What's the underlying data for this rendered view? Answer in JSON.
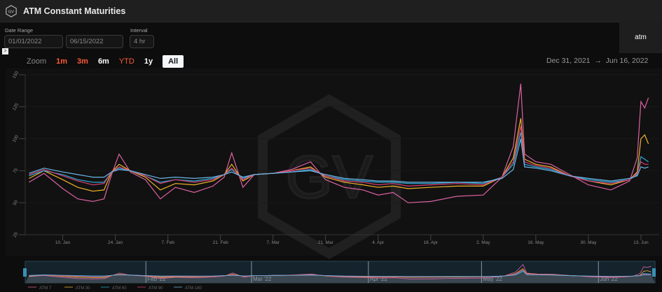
{
  "header": {
    "title": "ATM Constant Maturities",
    "logo_text": "GV"
  },
  "controls": {
    "date_range_label": "Date Range",
    "start_date": "01/01/2022",
    "end_date": "06/15/2022",
    "interval_label": "Interval",
    "interval": "4 hr",
    "atm_button": "atm",
    "toggle_icon": ">"
  },
  "zoom": {
    "label": "Zoom",
    "buttons": [
      "1m",
      "3m",
      "6m",
      "YTD",
      "1y",
      "All"
    ],
    "active": "All",
    "button_colors": [
      "#ff5a36",
      "#ff5a36",
      "#ffffff",
      "#ff5a36",
      "#ffffff",
      "#111111"
    ]
  },
  "range_display": {
    "from": "Dec 31, 2021",
    "arrow": "→",
    "to": "Jun 16, 2022"
  },
  "chart_data": {
    "type": "line",
    "title": "",
    "xlabel": "",
    "ylabel": "",
    "ylim": [
      25,
      150
    ],
    "yticks": [
      25,
      50,
      75,
      100,
      125,
      150
    ],
    "xlim": [
      "2021-12-31",
      "2022-06-16"
    ],
    "xticks": [
      [
        "2022-01-10",
        "10. Jan"
      ],
      [
        "2022-01-24",
        "24. Jan"
      ],
      [
        "2022-02-07",
        "7. Feb"
      ],
      [
        "2022-02-21",
        "21. Feb"
      ],
      [
        "2022-03-07",
        "7. Mar"
      ],
      [
        "2022-03-21",
        "21. Mar"
      ],
      [
        "2022-04-04",
        "4. Apr"
      ],
      [
        "2022-04-18",
        "18. Apr"
      ],
      [
        "2022-05-02",
        "2. May"
      ],
      [
        "2022-05-16",
        "16. May"
      ],
      [
        "2022-05-30",
        "30. May"
      ],
      [
        "2022-06-13",
        "13. Jun"
      ]
    ],
    "navigator_labels": [
      [
        "2022-02-01",
        "Feb '22"
      ],
      [
        "2022-03-01",
        "Mar '22"
      ],
      [
        "2022-04-01",
        "Apr '22"
      ],
      [
        "2022-05-01",
        "May '22"
      ],
      [
        "2022-06-01",
        "Jun '22"
      ]
    ],
    "watermark": "GV",
    "grid": true,
    "legend_position": "bottom-left",
    "x": [
      "2022-01-01",
      "2022-01-05",
      "2022-01-10",
      "2022-01-14",
      "2022-01-18",
      "2022-01-21",
      "2022-01-23",
      "2022-01-25",
      "2022-01-28",
      "2022-02-01",
      "2022-02-05",
      "2022-02-09",
      "2022-02-14",
      "2022-02-19",
      "2022-02-22",
      "2022-02-24",
      "2022-02-27",
      "2022-03-02",
      "2022-03-07",
      "2022-03-12",
      "2022-03-17",
      "2022-03-21",
      "2022-03-26",
      "2022-03-31",
      "2022-04-04",
      "2022-04-08",
      "2022-04-12",
      "2022-04-18",
      "2022-04-25",
      "2022-05-02",
      "2022-05-07",
      "2022-05-10",
      "2022-05-12",
      "2022-05-13",
      "2022-05-16",
      "2022-05-20",
      "2022-05-25",
      "2022-05-30",
      "2022-06-05",
      "2022-06-10",
      "2022-06-12",
      "2022-06-13",
      "2022-06-14",
      "2022-06-15"
    ],
    "series": [
      {
        "name": "ATM 7",
        "color": "#dc62a2",
        "values": [
          66,
          73,
          61,
          53,
          51,
          53,
          72,
          88,
          74,
          68,
          53,
          62,
          58,
          63,
          70,
          89,
          62,
          72,
          73,
          76,
          82,
          68,
          62,
          60,
          56,
          58,
          50,
          51,
          55,
          56,
          70,
          94,
          143,
          88,
          82,
          80,
          72,
          64,
          60,
          67,
          85,
          129,
          124,
          132
        ]
      },
      {
        "name": "ATM 30",
        "color": "#f0b429",
        "values": [
          69,
          75,
          68,
          62,
          59,
          60,
          74,
          80,
          75,
          70,
          60,
          65,
          64,
          67,
          72,
          80,
          67,
          72,
          73,
          75,
          78,
          70,
          66,
          64,
          62,
          63,
          61,
          62,
          63,
          63,
          70,
          85,
          116,
          84,
          80,
          78,
          71,
          67,
          64,
          68,
          74,
          100,
          103,
          96
        ]
      },
      {
        "name": "ATM 60",
        "color": "#2ea8d6",
        "values": [
          71,
          75,
          72,
          68,
          66,
          66,
          74,
          77,
          75,
          71,
          66,
          68,
          67,
          69,
          72,
          76,
          69,
          72,
          73,
          74,
          76,
          71,
          68,
          67,
          66,
          66,
          65,
          65,
          66,
          65,
          70,
          80,
          105,
          80,
          78,
          76,
          71,
          68,
          66,
          68,
          72,
          86,
          84,
          82
        ]
      },
      {
        "name": "ATM 90",
        "color": "#d63f73",
        "values": [
          72,
          76,
          71,
          67,
          64,
          65,
          74,
          78,
          75,
          71,
          65,
          68,
          66,
          68,
          72,
          77,
          68,
          72,
          73,
          75,
          77,
          71,
          67,
          66,
          64,
          65,
          63,
          64,
          65,
          64,
          70,
          82,
          110,
          82,
          79,
          77,
          71,
          67,
          65,
          68,
          73,
          82,
          80,
          80
        ]
      },
      {
        "name": "ATM 180",
        "color": "#6ab7e6",
        "values": [
          73,
          77,
          74,
          72,
          70,
          70,
          74,
          76,
          75,
          72,
          69,
          70,
          69,
          70,
          72,
          74,
          70,
          72,
          73,
          74,
          75,
          72,
          69,
          68,
          67,
          67,
          66,
          66,
          66,
          66,
          69,
          76,
          100,
          78,
          77,
          75,
          71,
          69,
          67,
          69,
          71,
          78,
          77,
          78
        ]
      }
    ]
  }
}
